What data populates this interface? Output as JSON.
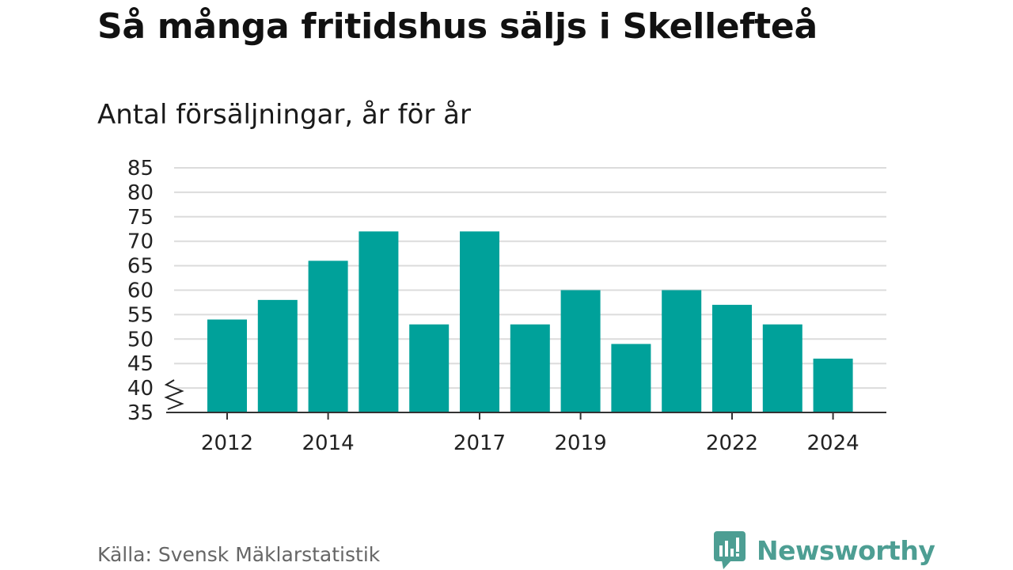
{
  "title": "Så många fritidshus säljs i Skellefteå",
  "subtitle": "Antal försäljningar, år för år",
  "source": "Källa: Svensk Mäklarstatistik",
  "brand": {
    "name": "Newsworthy",
    "color": "#4d9e93"
  },
  "colors": {
    "bar": "#00a19a",
    "grid": "#dcdcdc",
    "axis": "#333333"
  },
  "chart_data": {
    "type": "bar",
    "title": "Så många fritidshus säljs i Skellefteå",
    "subtitle": "Antal försäljningar, år för år",
    "categories": [
      "2012",
      "2013",
      "2014",
      "2015",
      "2016",
      "2017",
      "2018",
      "2019",
      "2020",
      "2021",
      "2022",
      "2023",
      "2024"
    ],
    "values": [
      54,
      58,
      66,
      72,
      53,
      72,
      53,
      60,
      49,
      60,
      57,
      53,
      46
    ],
    "x_tick_labels": [
      "2012",
      "2014",
      "2017",
      "2019",
      "2022",
      "2024"
    ],
    "y_ticks": [
      "35",
      "40",
      "45",
      "50",
      "55",
      "60",
      "65",
      "70",
      "75",
      "80",
      "85"
    ],
    "ylim": [
      35,
      85
    ],
    "axis_break": true,
    "grid": true,
    "legend": "none",
    "xlabel": "",
    "ylabel": ""
  }
}
